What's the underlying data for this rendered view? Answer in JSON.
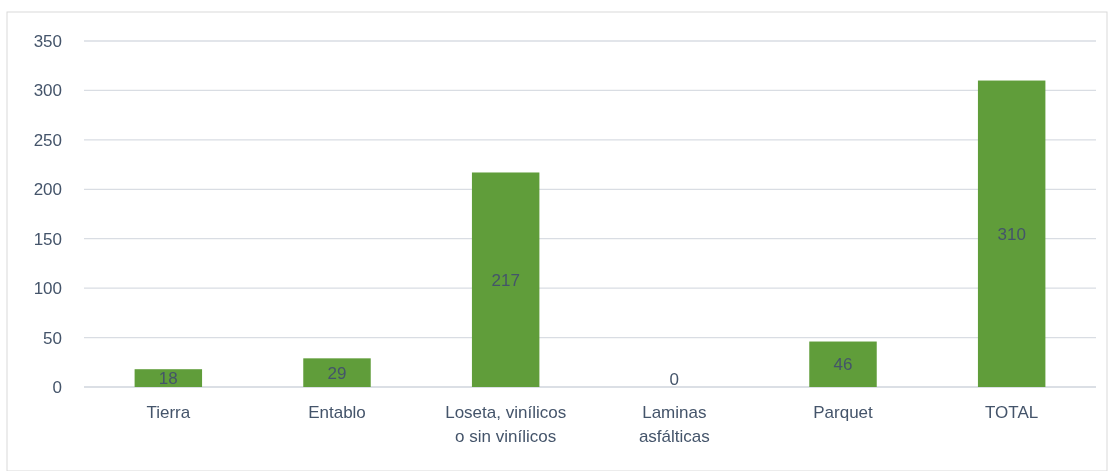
{
  "chart_data": {
    "type": "bar",
    "categories": [
      "Tierra",
      "Entablo",
      "Loseta, vinílicos o sin vinílicos",
      "Laminas asfálticas",
      "Parquet",
      "TOTAL"
    ],
    "values": [
      18,
      29,
      217,
      0,
      46,
      310
    ],
    "color": "#609d3a",
    "ylim": [
      0,
      350
    ],
    "yticks": [
      0,
      50,
      100,
      150,
      200,
      250,
      300,
      350
    ],
    "grid": "y",
    "data_labels": true
  }
}
